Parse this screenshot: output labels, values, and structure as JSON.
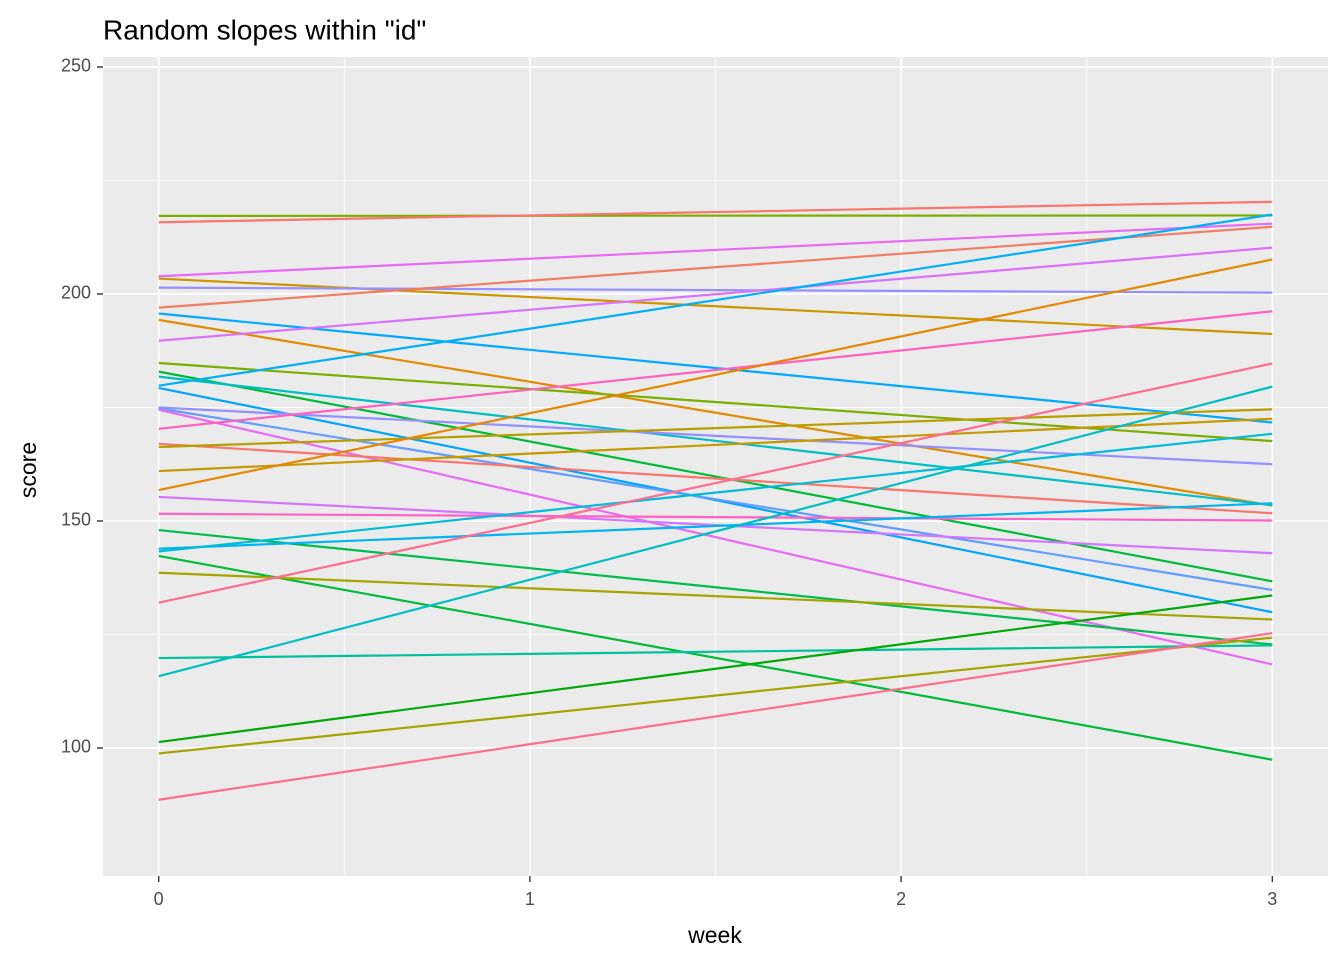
{
  "chart_data": {
    "type": "line",
    "title": "Random slopes within \"id\"",
    "x_label": "week",
    "y_label": "score",
    "x": [
      0,
      3
    ],
    "xlim": [
      -0.15,
      3.15
    ],
    "xticks": [
      0,
      1,
      2,
      3
    ],
    "ylim": [
      71.8,
      252.2
    ],
    "yticks": [
      100,
      150,
      200,
      250
    ],
    "grid": true,
    "series": [
      {
        "color": "#7CAE00",
        "values": [
          217.2,
          217.3
        ]
      },
      {
        "color": "#F8766D",
        "values": [
          215.8,
          220.3
        ]
      },
      {
        "color": "#E76BF3",
        "values": [
          203.9,
          215.5
        ]
      },
      {
        "color": "#CD9600",
        "values": [
          203.4,
          191.2
        ]
      },
      {
        "color": "#9590FF",
        "values": [
          201.4,
          200.3
        ]
      },
      {
        "color": "#F07E63",
        "values": [
          197.0,
          214.8
        ]
      },
      {
        "color": "#00A9FF",
        "values": [
          195.7,
          171.7
        ]
      },
      {
        "color": "#DE8C00",
        "values": [
          194.3,
          153.4
        ]
      },
      {
        "color": "#DB72FB",
        "values": [
          189.7,
          210.2
        ]
      },
      {
        "color": "#7CAE00",
        "values": [
          184.8,
          167.6
        ]
      },
      {
        "color": "#00BA38",
        "values": [
          182.9,
          136.7
        ]
      },
      {
        "color": "#00BFC4",
        "values": [
          181.8,
          153.5
        ]
      },
      {
        "color": "#00B0F6",
        "values": [
          179.8,
          217.5
        ]
      },
      {
        "color": "#00A5FF",
        "values": [
          179.3,
          129.9
        ]
      },
      {
        "color": "#9590FF",
        "values": [
          175.0,
          162.5
        ]
      },
      {
        "color": "#619CFF",
        "values": [
          174.8,
          134.8
        ]
      },
      {
        "color": "#E76BF3",
        "values": [
          174.5,
          118.4
        ]
      },
      {
        "color": "#FF62BC",
        "values": [
          170.3,
          196.2
        ]
      },
      {
        "color": "#F8766D",
        "values": [
          167.0,
          151.7
        ]
      },
      {
        "color": "#B79F00",
        "values": [
          166.3,
          174.6
        ]
      },
      {
        "color": "#C49A00",
        "values": [
          161.0,
          172.5
        ]
      },
      {
        "color": "#E58700",
        "values": [
          156.8,
          207.6
        ]
      },
      {
        "color": "#D575FE",
        "values": [
          155.3,
          142.9
        ]
      },
      {
        "color": "#FF61C3",
        "values": [
          151.6,
          150.1
        ]
      },
      {
        "color": "#00BB4E",
        "values": [
          148.0,
          122.8
        ]
      },
      {
        "color": "#00B4F0",
        "values": [
          143.9,
          153.9
        ]
      },
      {
        "color": "#00BCD8",
        "values": [
          143.3,
          169.2
        ]
      },
      {
        "color": "#00BA38",
        "values": [
          142.3,
          97.4
        ]
      },
      {
        "color": "#A3A500",
        "values": [
          138.6,
          128.3
        ]
      },
      {
        "color": "#FF6C91",
        "values": [
          132.0,
          184.7
        ]
      },
      {
        "color": "#00C19A",
        "values": [
          119.8,
          122.6
        ]
      },
      {
        "color": "#00BFC4",
        "values": [
          115.8,
          179.6
        ]
      },
      {
        "color": "#00A808",
        "values": [
          101.3,
          133.6
        ]
      },
      {
        "color": "#A3A500",
        "values": [
          98.8,
          124.3
        ]
      },
      {
        "color": "#FF6C91",
        "values": [
          88.6,
          125.3
        ]
      }
    ]
  }
}
